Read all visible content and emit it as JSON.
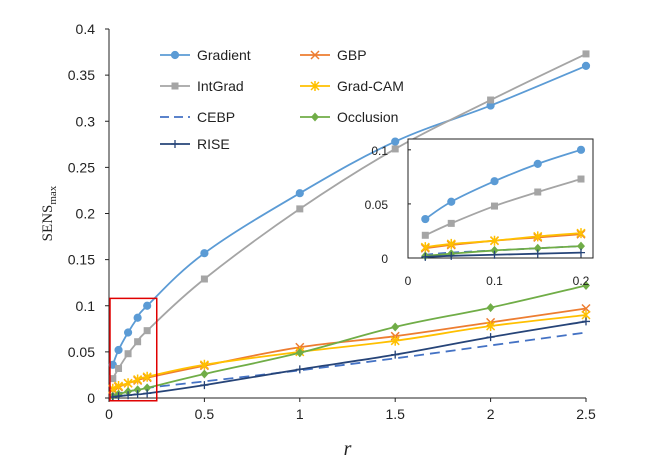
{
  "chart_data": {
    "type": "line",
    "xlabel": "r",
    "ylabel": "SENS",
    "ylabel_sub": "max",
    "xlim": [
      0,
      2.5
    ],
    "ylim": [
      0,
      0.4
    ],
    "xticks": [
      "0",
      "0.5",
      "1",
      "1.5",
      "2",
      "2.5"
    ],
    "yticks": [
      "0",
      "0.05",
      "0.1",
      "0.15",
      "0.2",
      "0.25",
      "0.3",
      "0.35",
      "0.4"
    ],
    "x": [
      0.02,
      0.05,
      0.1,
      0.15,
      0.2,
      0.5,
      1.0,
      1.5,
      2.0,
      2.5
    ],
    "series": [
      {
        "name": "Gradient",
        "color": "#5b9bd5",
        "marker": "circle",
        "dash": "",
        "values": [
          0.036,
          0.052,
          0.071,
          0.087,
          0.1,
          0.157,
          0.222,
          0.278,
          0.317,
          0.36
        ]
      },
      {
        "name": "GBP",
        "color": "#ed7d31",
        "marker": "x",
        "dash": "",
        "values": [
          0.009,
          0.012,
          0.016,
          0.019,
          0.022,
          0.035,
          0.055,
          0.067,
          0.082,
          0.097
        ]
      },
      {
        "name": "IntGrad",
        "color": "#a5a5a5",
        "marker": "square",
        "dash": "",
        "values": [
          0.021,
          0.032,
          0.048,
          0.061,
          0.073,
          0.129,
          0.205,
          0.27,
          0.323,
          0.373
        ]
      },
      {
        "name": "Grad-CAM",
        "color": "#ffc000",
        "marker": "star",
        "dash": "",
        "values": [
          0.01,
          0.013,
          0.016,
          0.02,
          0.023,
          0.036,
          0.05,
          0.062,
          0.078,
          0.09
        ]
      },
      {
        "name": "CEBP",
        "color": "#4472c4",
        "marker": "none",
        "dash": "10,6",
        "values": [
          0.003,
          0.005,
          0.007,
          0.009,
          0.011,
          0.018,
          0.03,
          0.043,
          0.057,
          0.071
        ]
      },
      {
        "name": "Occlusion",
        "color": "#70ad47",
        "marker": "diamond",
        "dash": "",
        "values": [
          0.002,
          0.004,
          0.007,
          0.009,
          0.011,
          0.026,
          0.049,
          0.077,
          0.098,
          0.122
        ]
      },
      {
        "name": "RISE",
        "color": "#264478",
        "marker": "plus",
        "dash": "",
        "values": [
          0.001,
          0.002,
          0.003,
          0.004,
          0.005,
          0.014,
          0.031,
          0.047,
          0.066,
          0.083
        ]
      }
    ],
    "inset": {
      "xlim": [
        0,
        0.2
      ],
      "ylim": [
        0,
        0.11
      ],
      "xticks": [
        "0",
        "0.1",
        "0.2"
      ],
      "yticks": [
        "0",
        "0.05",
        "0.1"
      ]
    }
  }
}
